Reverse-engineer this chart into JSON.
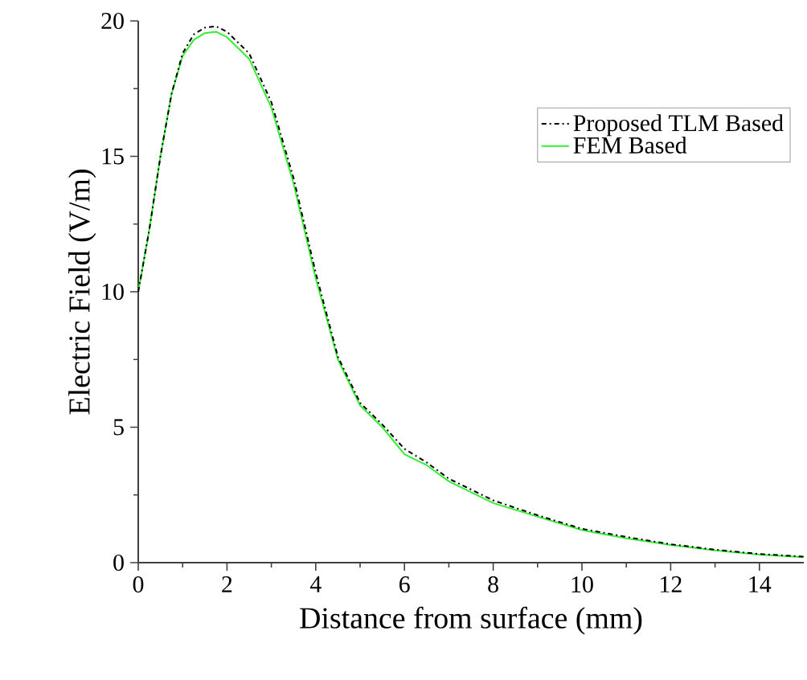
{
  "chart_data": {
    "type": "line",
    "xlabel": "Distance from surface (mm)",
    "ylabel": "Electric Field (V/m)",
    "xlim": [
      0,
      15
    ],
    "ylim": [
      0,
      20
    ],
    "xticks": [
      0,
      2,
      4,
      6,
      8,
      10,
      12,
      14
    ],
    "yticks": [
      0,
      5,
      10,
      15,
      20
    ],
    "grid": false,
    "legend": "top right",
    "marker": "none",
    "series": [
      {
        "name": "Proposed TLM Based",
        "color": "#000000",
        "line_style": "dashdot",
        "x": [
          0,
          0.25,
          0.5,
          0.75,
          1,
          1.25,
          1.5,
          1.75,
          2,
          2.5,
          3,
          3.5,
          4,
          4.5,
          5,
          5.5,
          6,
          6.5,
          7,
          7.5,
          8,
          9,
          10,
          11,
          12,
          13,
          14,
          15
        ],
        "values": [
          10,
          12.3,
          15,
          17.3,
          18.8,
          19.5,
          19.75,
          19.8,
          19.6,
          18.8,
          17.0,
          14.2,
          10.7,
          7.6,
          5.9,
          5.1,
          4.2,
          3.7,
          3.1,
          2.7,
          2.3,
          1.75,
          1.25,
          0.95,
          0.68,
          0.48,
          0.32,
          0.22
        ]
      },
      {
        "name": "FEM Based",
        "color": "#33ee33",
        "line_style": "solid",
        "x": [
          0,
          0.25,
          0.5,
          0.75,
          1,
          1.25,
          1.5,
          1.75,
          2,
          2.5,
          3,
          3.5,
          4,
          4.5,
          5,
          5.5,
          6,
          6.5,
          7,
          7.5,
          8,
          9,
          10,
          11,
          12,
          13,
          14,
          15
        ],
        "values": [
          10,
          12.3,
          15,
          17.3,
          18.7,
          19.3,
          19.55,
          19.6,
          19.4,
          18.6,
          16.8,
          14.0,
          10.5,
          7.5,
          5.8,
          5.0,
          4.0,
          3.6,
          3.0,
          2.6,
          2.2,
          1.7,
          1.2,
          0.9,
          0.65,
          0.45,
          0.3,
          0.2
        ]
      }
    ]
  }
}
